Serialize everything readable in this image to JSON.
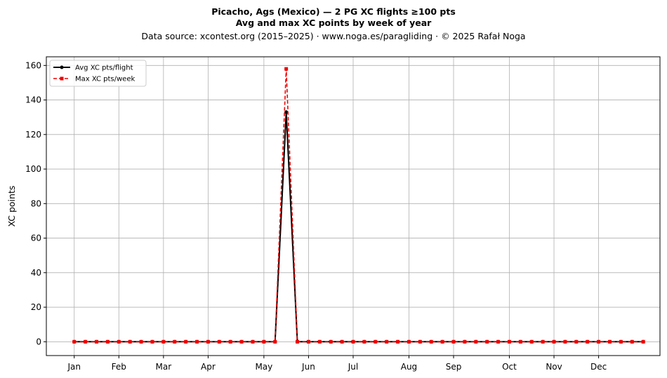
{
  "chart_data": {
    "type": "line",
    "title": "Picacho, Ags (Mexico)  —  2 PG XC flights ≥100 pts",
    "title_line2": "Avg and max XC points by week of year",
    "subtitle": "Data source: xcontest.org (2015–2025)  ·  www.noga.es/paragliding  ·  © 2025 Rafał Noga",
    "xlabel": "",
    "ylabel": "XC points",
    "ylim": [
      -8,
      165
    ],
    "xlim": [
      -1.5,
      53.5
    ],
    "y_ticks": [
      0,
      20,
      40,
      60,
      80,
      100,
      120,
      140,
      160
    ],
    "x_ticks": [
      {
        "label": "Jan",
        "week": 1
      },
      {
        "label": "Feb",
        "week": 5
      },
      {
        "label": "Mar",
        "week": 9
      },
      {
        "label": "Apr",
        "week": 13
      },
      {
        "label": "May",
        "week": 18
      },
      {
        "label": "Jun",
        "week": 22
      },
      {
        "label": "Jul",
        "week": 26
      },
      {
        "label": "Aug",
        "week": 31
      },
      {
        "label": "Sep",
        "week": 35
      },
      {
        "label": "Oct",
        "week": 40
      },
      {
        "label": "Nov",
        "week": 44
      },
      {
        "label": "Dec",
        "week": 48
      }
    ],
    "grid": true,
    "legend_position": "top-left",
    "x": [
      1,
      2,
      3,
      4,
      5,
      6,
      7,
      8,
      9,
      10,
      11,
      12,
      13,
      14,
      15,
      16,
      17,
      18,
      19,
      20,
      21,
      22,
      23,
      24,
      25,
      26,
      27,
      28,
      29,
      30,
      31,
      32,
      33,
      34,
      35,
      36,
      37,
      38,
      39,
      40,
      41,
      42,
      43,
      44,
      45,
      46,
      47,
      48,
      49,
      50,
      51,
      52
    ],
    "series": [
      {
        "name": "Avg XC pts/flight",
        "color": "#000000",
        "style": "solid",
        "marker": "circle",
        "values": [
          0,
          0,
          0,
          0,
          0,
          0,
          0,
          0,
          0,
          0,
          0,
          0,
          0,
          0,
          0,
          0,
          0,
          0,
          0,
          133,
          0,
          0,
          0,
          0,
          0,
          0,
          0,
          0,
          0,
          0,
          0,
          0,
          0,
          0,
          0,
          0,
          0,
          0,
          0,
          0,
          0,
          0,
          0,
          0,
          0,
          0,
          0,
          0,
          0,
          0,
          0,
          0
        ]
      },
      {
        "name": "Max XC pts/week",
        "color": "#ee0000",
        "style": "dashed",
        "marker": "square",
        "values": [
          0,
          0,
          0,
          0,
          0,
          0,
          0,
          0,
          0,
          0,
          0,
          0,
          0,
          0,
          0,
          0,
          0,
          0,
          0,
          158,
          0,
          0,
          0,
          0,
          0,
          0,
          0,
          0,
          0,
          0,
          0,
          0,
          0,
          0,
          0,
          0,
          0,
          0,
          0,
          0,
          0,
          0,
          0,
          0,
          0,
          0,
          0,
          0,
          0,
          0,
          0,
          0
        ]
      }
    ]
  }
}
